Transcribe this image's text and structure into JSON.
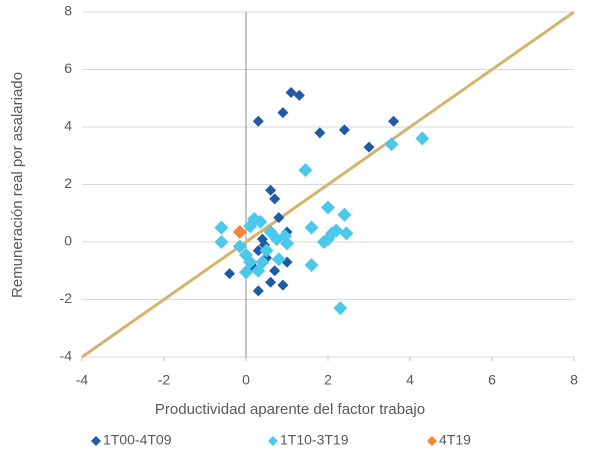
{
  "chart_data": {
    "type": "scatter",
    "x_label": "Productividad aparente del factor trabajo",
    "y_label": "Remuneración real por asalariado",
    "xlim": [
      -4,
      8
    ],
    "xticks": [
      -4,
      -2,
      0,
      2,
      4,
      6,
      8
    ],
    "ylim": [
      -4,
      8
    ],
    "yticks": [
      -4,
      -2,
      0,
      2,
      4,
      6,
      8
    ],
    "grid": true,
    "legend": "bottom",
    "diagonal": {
      "x": [
        -4,
        8
      ],
      "y": [
        -4,
        8
      ],
      "color": "#d4b56e"
    },
    "series": [
      {
        "name": "1T00-4T09",
        "color": "#1f5aa6",
        "x": [
          1.1,
          1.3,
          0.9,
          0.3,
          3.6,
          2.4,
          1.8,
          3.0,
          0.6,
          0.7,
          0.8,
          1.0,
          0.4,
          0.3,
          0.5,
          0.2,
          -0.4,
          0.7,
          1.0,
          0.6,
          0.9,
          0.3,
          0.45
        ],
        "values": [
          5.2,
          5.1,
          4.5,
          4.2,
          4.2,
          3.9,
          3.8,
          3.3,
          1.8,
          1.5,
          0.85,
          0.35,
          0.1,
          -0.3,
          -0.55,
          -0.9,
          -1.1,
          -1.0,
          -0.7,
          -1.4,
          -1.5,
          -1.7,
          -0.1
        ]
      },
      {
        "name": "1T10-3T19",
        "color": "#4cc8ea",
        "x": [
          4.3,
          3.55,
          1.45,
          2.0,
          2.4,
          1.6,
          2.2,
          2.45,
          2.0,
          2.1,
          1.9,
          1.6,
          2.3,
          -0.6,
          -0.6,
          0.2,
          0.35,
          0.1,
          0.6,
          -0.15,
          0.0,
          0.1,
          0.4,
          0.8,
          1.0,
          0.0,
          0.3,
          0.75,
          0.5,
          0.95
        ],
        "values": [
          3.6,
          3.4,
          2.5,
          1.2,
          0.95,
          0.5,
          0.4,
          0.3,
          0.1,
          0.3,
          0.0,
          -0.8,
          -2.3,
          0.5,
          0.0,
          0.8,
          0.7,
          0.55,
          0.35,
          -0.15,
          -0.45,
          -0.7,
          -0.7,
          -0.6,
          -0.05,
          -1.05,
          -1.0,
          0.1,
          -0.3,
          0.2
        ]
      },
      {
        "name": "4T19",
        "color": "#f0883a",
        "x": [
          -0.15
        ],
        "values": [
          0.35
        ]
      }
    ]
  }
}
